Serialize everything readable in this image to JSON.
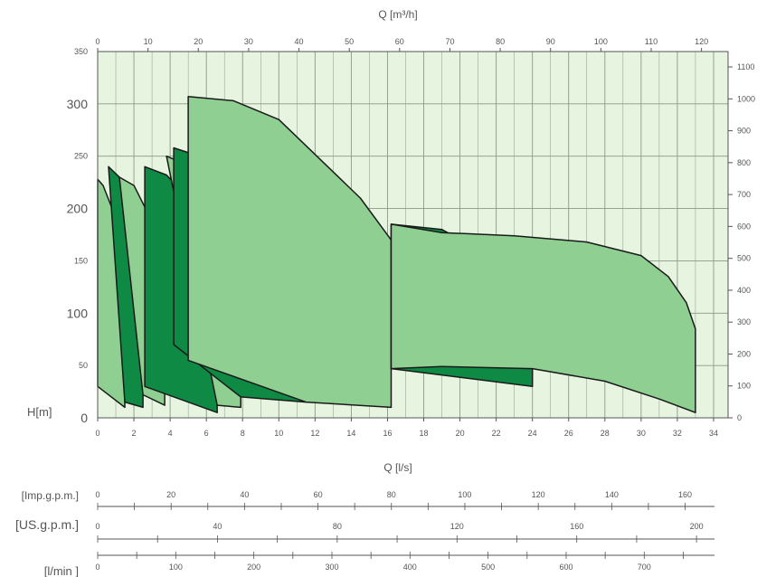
{
  "chart_data": {
    "type": "area",
    "title": "",
    "xlabel": "Q [l/s]",
    "x2label": "Q [m³/h]",
    "ylabel": "H[m]",
    "xlim": [
      0,
      34.8
    ],
    "ylim": [
      0,
      350
    ],
    "grid": true,
    "colors": {
      "plot_bg": "#e6f4e0",
      "grid": "#8a9a86",
      "light": "#8fcf92",
      "dark": "#0f8a45",
      "outline": "#1a1a1a"
    },
    "x_ticks": [
      0,
      2,
      4,
      6,
      8,
      10,
      12,
      14,
      16,
      18,
      20,
      22,
      24,
      26,
      28,
      30,
      32,
      34
    ],
    "x2_ticks": [
      0,
      10,
      20,
      30,
      40,
      50,
      60,
      70,
      80,
      90,
      100,
      110,
      120
    ],
    "y_ticks": [
      0,
      50,
      100,
      150,
      200,
      250,
      300,
      350
    ],
    "y2_ticks": [
      100,
      200,
      300,
      400,
      500,
      600,
      700,
      800,
      900,
      1000,
      1100
    ],
    "series": [
      {
        "shade": "light",
        "values": [
          [
            0,
            228
          ],
          [
            0.3,
            222
          ],
          [
            0.8,
            200
          ],
          [
            1.3,
            155
          ],
          [
            1.5,
            85
          ],
          [
            1.5,
            10
          ],
          [
            0,
            30
          ]
        ]
      },
      {
        "shade": "dark",
        "values": [
          [
            0.6,
            240
          ],
          [
            1.2,
            230
          ],
          [
            1.8,
            205
          ],
          [
            2.4,
            155
          ],
          [
            2.5,
            110
          ],
          [
            2.5,
            10
          ],
          [
            1.5,
            15
          ]
        ]
      },
      {
        "shade": "light",
        "values": [
          [
            1.2,
            230
          ],
          [
            2.0,
            222
          ],
          [
            2.7,
            198
          ],
          [
            3.4,
            155
          ],
          [
            3.7,
            110
          ],
          [
            3.7,
            12
          ],
          [
            2.5,
            22
          ]
        ]
      },
      {
        "shade": "dark",
        "values": [
          [
            2.6,
            240
          ],
          [
            3.8,
            232
          ],
          [
            5.0,
            210
          ],
          [
            6.0,
            170
          ],
          [
            6.5,
            110
          ],
          [
            6.6,
            5
          ],
          [
            2.6,
            30
          ]
        ]
      },
      {
        "shade": "light",
        "values": [
          [
            3.8,
            250
          ],
          [
            5.2,
            240
          ],
          [
            6.6,
            210
          ],
          [
            7.5,
            175
          ],
          [
            7.9,
            140
          ],
          [
            7.9,
            10
          ],
          [
            6.6,
            12
          ]
        ]
      },
      {
        "shade": "dark",
        "values": [
          [
            4.2,
            258
          ],
          [
            6.5,
            245
          ],
          [
            8.5,
            220
          ],
          [
            10.2,
            175
          ],
          [
            11.5,
            128
          ],
          [
            11.5,
            15
          ],
          [
            7.9,
            20
          ],
          [
            4.2,
            70
          ]
        ]
      },
      {
        "shade": "light",
        "values": [
          [
            5.0,
            307
          ],
          [
            7.5,
            303
          ],
          [
            10.0,
            285
          ],
          [
            13.0,
            235
          ],
          [
            14.5,
            210
          ],
          [
            16.2,
            170
          ],
          [
            16.2,
            10
          ],
          [
            11.5,
            15
          ],
          [
            5.0,
            55
          ]
        ]
      },
      {
        "shade": "dark",
        "values": [
          [
            16.2,
            185
          ],
          [
            19.0,
            180
          ],
          [
            24.0,
            133
          ],
          [
            24.0,
            30
          ],
          [
            16.2,
            47
          ]
        ]
      },
      {
        "shade": "light",
        "values": [
          [
            16.2,
            185
          ],
          [
            19.0,
            177
          ],
          [
            23.0,
            174
          ],
          [
            27.0,
            168
          ],
          [
            30.0,
            155
          ],
          [
            31.5,
            135
          ],
          [
            32.5,
            110
          ],
          [
            33.0,
            85
          ],
          [
            33.0,
            5
          ],
          [
            31.0,
            18
          ],
          [
            28.0,
            35
          ],
          [
            24.0,
            47
          ],
          [
            19.0,
            49
          ],
          [
            16.2,
            47
          ]
        ]
      }
    ]
  },
  "axes": {
    "top_title": "Q [m³/h]",
    "bottom_title": "Q [l/s]",
    "y_title": "H[m]"
  },
  "extra_scales": [
    {
      "label": "[Imp.g.p.m.]",
      "ticks": [
        0,
        20,
        40,
        60,
        80,
        100,
        120,
        140,
        160
      ],
      "max": 168
    },
    {
      "label": "[US.g.p.m.]",
      "ticks": [
        0,
        40,
        80,
        120,
        160,
        200
      ],
      "max": 206
    },
    {
      "label": "[l/min ]",
      "ticks": [
        0,
        100,
        200,
        300,
        400,
        500,
        600,
        700
      ],
      "max": 790
    }
  ]
}
